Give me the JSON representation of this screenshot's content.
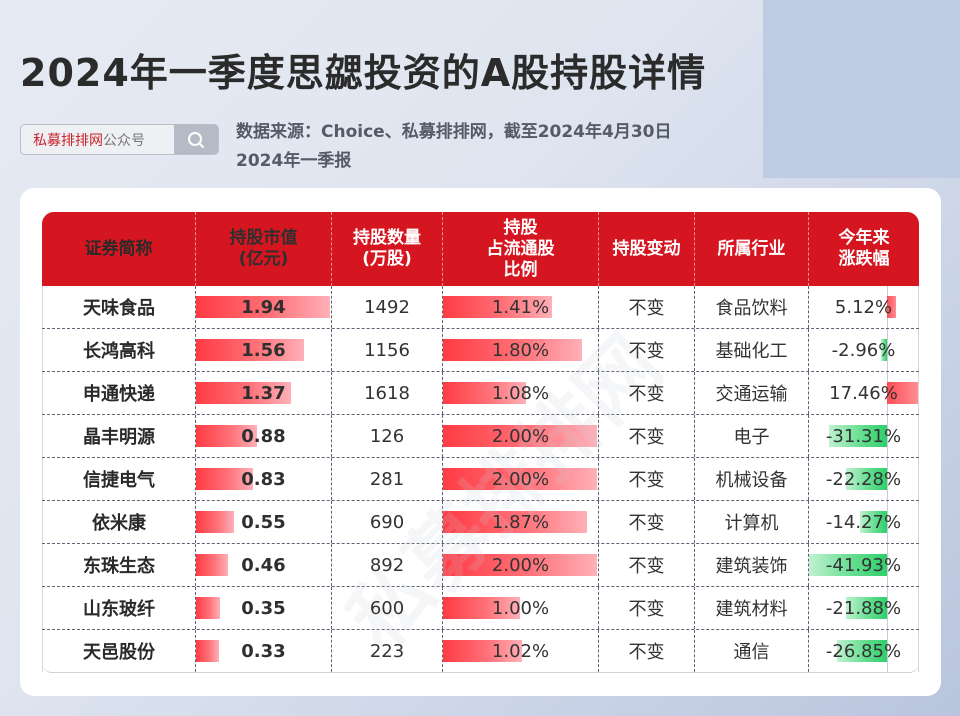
{
  "title": "2024年一季度思勰投资的A股持股详情",
  "search": {
    "brand": "私募排排网",
    "suffix": "公众号",
    "icon": "search-icon"
  },
  "source": {
    "line1": "数据来源：Choice、私募排排网，截至2024年4月30日",
    "line2": "2024年一季报"
  },
  "watermark": "私募排排网",
  "colors": {
    "header_red": "#d5151f",
    "bar_red": "#ff3b44",
    "bar_green": "#2ecf6a"
  },
  "table": {
    "headers": [
      "证券简称",
      "持股市值\n(亿元)",
      "持股数量\n(万股)",
      "持股\n占流通股\n比例",
      "持股变动",
      "所属行业",
      "今年来\n涨跌幅"
    ],
    "rows": [
      {
        "name": "天味食品",
        "value": "1.94",
        "qty": "1492",
        "ratio": "1.41%",
        "change": "不变",
        "industry": "食品饮料",
        "ytd": "5.12%"
      },
      {
        "name": "长鸿高科",
        "value": "1.56",
        "qty": "1156",
        "ratio": "1.80%",
        "change": "不变",
        "industry": "基础化工",
        "ytd": "-2.96%"
      },
      {
        "name": "申通快递",
        "value": "1.37",
        "qty": "1618",
        "ratio": "1.08%",
        "change": "不变",
        "industry": "交通运输",
        "ytd": "17.46%"
      },
      {
        "name": "晶丰明源",
        "value": "0.88",
        "qty": "126",
        "ratio": "2.00%",
        "change": "不变",
        "industry": "电子",
        "ytd": "-31.31%"
      },
      {
        "name": "信捷电气",
        "value": "0.83",
        "qty": "281",
        "ratio": "2.00%",
        "change": "不变",
        "industry": "机械设备",
        "ytd": "-22.28%"
      },
      {
        "name": "依米康",
        "value": "0.55",
        "qty": "690",
        "ratio": "1.87%",
        "change": "不变",
        "industry": "计算机",
        "ytd": "-14.27%"
      },
      {
        "name": "东珠生态",
        "value": "0.46",
        "qty": "892",
        "ratio": "2.00%",
        "change": "不变",
        "industry": "建筑装饰",
        "ytd": "-41.93%"
      },
      {
        "name": "山东玻纤",
        "value": "0.35",
        "qty": "600",
        "ratio": "1.00%",
        "change": "不变",
        "industry": "建筑材料",
        "ytd": "-21.88%"
      },
      {
        "name": "天邑股份",
        "value": "0.33",
        "qty": "223",
        "ratio": "1.02%",
        "change": "不变",
        "industry": "通信",
        "ytd": "-26.85%"
      }
    ]
  }
}
